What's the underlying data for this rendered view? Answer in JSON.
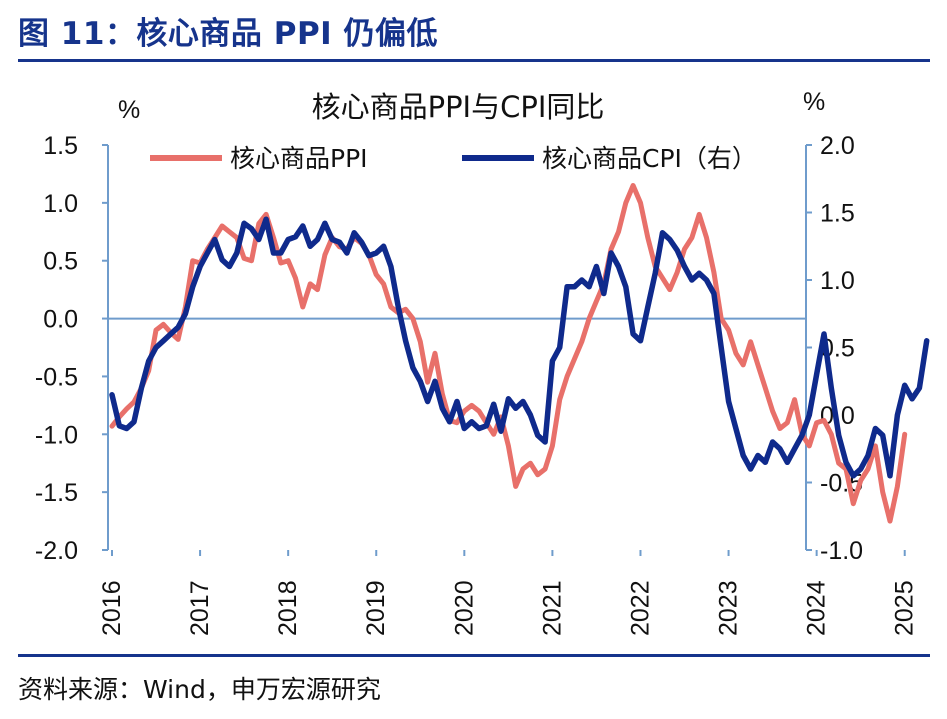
{
  "figure": {
    "title": "图 11：核心商品 PPI 仍偏低",
    "source": "资料来源：Wind，申万宏源研究"
  },
  "colors": {
    "ppi": "#e8706a",
    "cpi": "#0f2a8c",
    "axis": "#6f9ccc",
    "figure_title": "#16348c"
  },
  "chart_data": {
    "type": "line",
    "title": "核心商品PPI与CPI同比",
    "left_unit": "%",
    "right_unit": "%",
    "ylim_left": [
      -2.0,
      1.5
    ],
    "ylim_right": [
      -1.0,
      2.0
    ],
    "yticks_left": [
      "1.5",
      "1.0",
      "0.5",
      "0.0",
      "-0.5",
      "-1.0",
      "-1.5",
      "-2.0"
    ],
    "yticks_right": [
      "2.0",
      "1.5",
      "1.0",
      "0.5",
      "0.0",
      "-0.5",
      "-1.0"
    ],
    "xticks": [
      "2016",
      "2017",
      "2018",
      "2019",
      "2020",
      "2021",
      "2022",
      "2023",
      "2024",
      "2025"
    ],
    "x_start": "2016-01",
    "grid": false,
    "legend_position": "top",
    "series": [
      {
        "name": "核心商品PPI",
        "axis": "left",
        "values": [
          -0.93,
          -0.85,
          -0.78,
          -0.72,
          -0.6,
          -0.45,
          -0.1,
          -0.05,
          -0.12,
          -0.18,
          0.1,
          0.5,
          0.48,
          0.6,
          0.7,
          0.8,
          0.75,
          0.7,
          0.52,
          0.5,
          0.82,
          0.9,
          0.7,
          0.48,
          0.5,
          0.35,
          0.1,
          0.3,
          0.25,
          0.55,
          0.7,
          0.62,
          0.6,
          0.7,
          0.65,
          0.55,
          0.38,
          0.3,
          0.1,
          0.05,
          0.08,
          0.0,
          -0.2,
          -0.55,
          -0.3,
          -0.65,
          -0.88,
          -0.9,
          -0.8,
          -0.75,
          -0.8,
          -0.9,
          -1.0,
          -0.85,
          -1.1,
          -1.45,
          -1.3,
          -1.25,
          -1.35,
          -1.3,
          -1.1,
          -0.7,
          -0.5,
          -0.35,
          -0.2,
          0.0,
          0.15,
          0.3,
          0.6,
          0.75,
          1.0,
          1.15,
          1.0,
          0.7,
          0.45,
          0.35,
          0.25,
          0.4,
          0.6,
          0.7,
          0.9,
          0.7,
          0.4,
          0.0,
          -0.1,
          -0.3,
          -0.4,
          -0.2,
          -0.4,
          -0.6,
          -0.8,
          -0.95,
          -0.9,
          -0.7,
          -1.0,
          -1.1,
          -0.9,
          -0.88,
          -1.0,
          -1.25,
          -1.3,
          -1.6,
          -1.4,
          -1.3,
          -1.1,
          -1.5,
          -1.75,
          -1.45,
          -1.0
        ]
      },
      {
        "name": "核心商品CPI（右）",
        "axis": "right",
        "values": [
          0.15,
          -0.08,
          -0.1,
          -0.05,
          0.2,
          0.4,
          0.5,
          0.55,
          0.6,
          0.65,
          0.75,
          0.95,
          1.1,
          1.2,
          1.3,
          1.15,
          1.1,
          1.2,
          1.42,
          1.38,
          1.3,
          1.45,
          1.2,
          1.2,
          1.3,
          1.32,
          1.4,
          1.25,
          1.3,
          1.42,
          1.3,
          1.28,
          1.2,
          1.35,
          1.28,
          1.18,
          1.2,
          1.25,
          1.1,
          0.8,
          0.55,
          0.35,
          0.25,
          0.1,
          0.25,
          0.05,
          -0.05,
          0.1,
          -0.1,
          -0.05,
          -0.1,
          -0.08,
          0.08,
          -0.12,
          0.12,
          0.05,
          0.1,
          0.0,
          -0.15,
          -0.2,
          0.4,
          0.5,
          0.95,
          0.95,
          1.0,
          0.95,
          1.1,
          0.9,
          1.2,
          1.1,
          0.95,
          0.6,
          0.55,
          0.8,
          1.05,
          1.35,
          1.3,
          1.22,
          1.1,
          1.0,
          1.05,
          1.0,
          0.9,
          0.5,
          0.1,
          -0.1,
          -0.3,
          -0.4,
          -0.3,
          -0.35,
          -0.2,
          -0.25,
          -0.35,
          -0.25,
          -0.15,
          0.0,
          0.3,
          0.6,
          0.2,
          -0.15,
          -0.35,
          -0.45,
          -0.4,
          -0.3,
          -0.1,
          -0.15,
          -0.45,
          0.0,
          0.22,
          0.12,
          0.2,
          0.55
        ]
      }
    ]
  }
}
